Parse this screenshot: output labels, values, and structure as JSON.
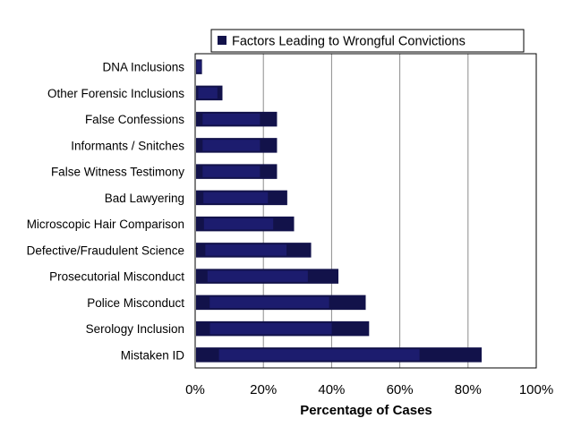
{
  "chart_data": {
    "type": "bar",
    "orientation": "horizontal",
    "categories": [
      "DNA Inclusions",
      "Other Forensic Inclusions",
      "False Confessions",
      "Informants / Snitches",
      "False Witness Testimony",
      "Bad Lawyering",
      "Microscopic Hair Comparison",
      "Defective/Fraudulent Science",
      "Prosecutorial Misconduct",
      "Police Misconduct",
      "Serology Inclusion",
      "Mistaken ID"
    ],
    "series": [
      {
        "name": "Factors Leading to Wrongful Convictions",
        "values": [
          2,
          8,
          24,
          24,
          24,
          27,
          29,
          34,
          42,
          50,
          51,
          84
        ]
      }
    ],
    "xlabel": "Percentage of Cases",
    "ylabel": "",
    "xlim": [
      0,
      100
    ],
    "xticks": [
      "0%",
      "20%",
      "40%",
      "60%",
      "80%",
      "100%"
    ],
    "grid": "vertical",
    "legend_position": "top",
    "bar_color": "#12124a",
    "bar_highlight_color": "#1c1c6e",
    "grid_color": "#8c8c8c"
  }
}
